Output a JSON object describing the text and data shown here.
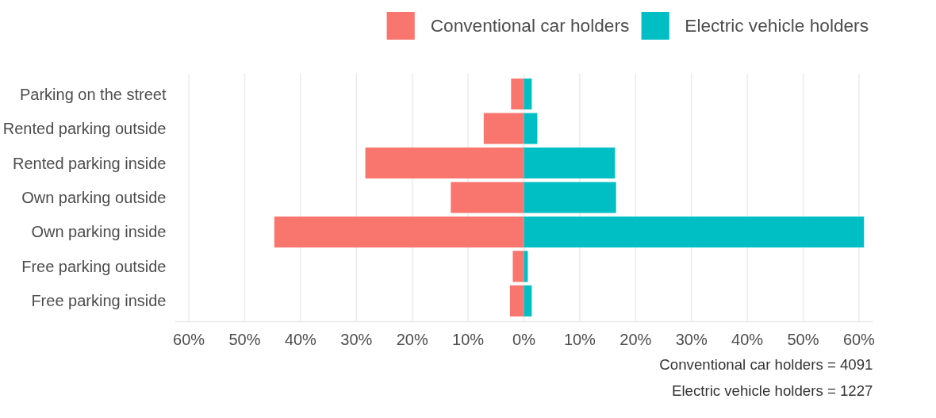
{
  "chart_data": {
    "type": "bar",
    "orientation": "horizontal",
    "stacked": true,
    "categories": [
      "Parking on the street",
      "Rented parking outside",
      "Rented parking inside",
      "Own parking outside",
      "Own parking inside",
      "Free parking outside",
      "Free parking inside"
    ],
    "series": [
      {
        "name": "Conventional car holders",
        "color": "#f8766d",
        "values": [
          -2.3,
          -7.2,
          -28.4,
          -13.1,
          -44.7,
          -2.0,
          -2.5
        ]
      },
      {
        "name": "Electric vehicle holders",
        "color": "#00bfc4",
        "values": [
          1.4,
          2.4,
          16.3,
          16.5,
          60.9,
          0.7,
          1.4
        ]
      }
    ],
    "xticks": [
      {
        "value": -60,
        "label": "60%"
      },
      {
        "value": -50,
        "label": "50%"
      },
      {
        "value": -40,
        "label": "40%"
      },
      {
        "value": -30,
        "label": "30%"
      },
      {
        "value": -20,
        "label": "20%"
      },
      {
        "value": -10,
        "label": "10%"
      },
      {
        "value": 0,
        "label": "0%"
      },
      {
        "value": 10,
        "label": "10%"
      },
      {
        "value": 20,
        "label": "20%"
      },
      {
        "value": 30,
        "label": "30%"
      },
      {
        "value": 40,
        "label": "40%"
      },
      {
        "value": 50,
        "label": "50%"
      },
      {
        "value": 60,
        "label": "60%"
      }
    ],
    "xlim": [
      -62.5,
      62.5
    ],
    "grid": "x",
    "legend": "top",
    "annotations": [
      "Conventional car holders = 4091",
      "Electric vehicle holders = 1227"
    ]
  }
}
